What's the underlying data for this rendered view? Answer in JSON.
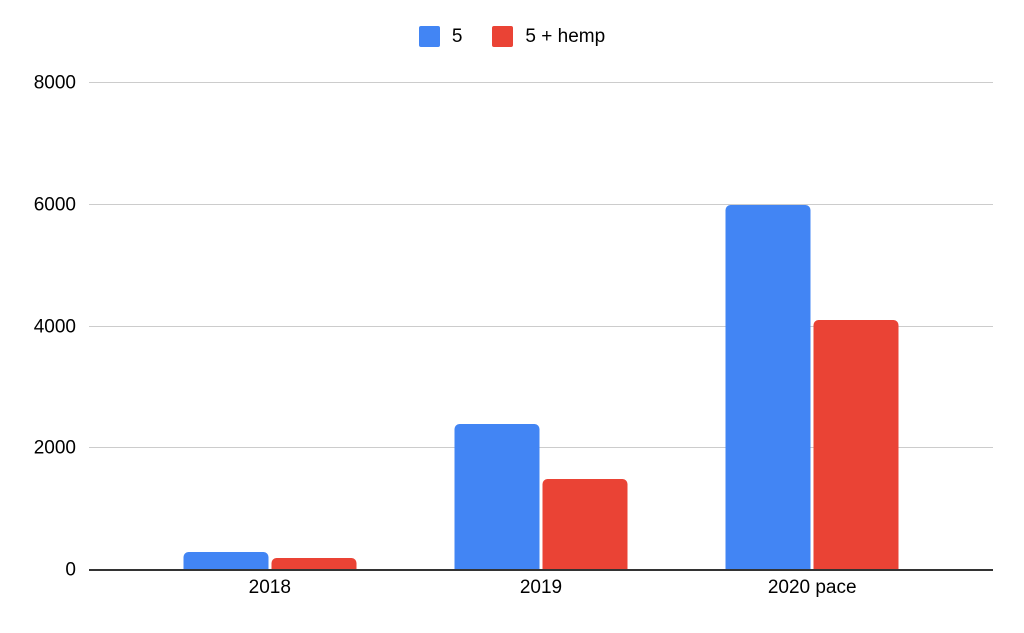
{
  "chart_data": {
    "type": "bar",
    "title": "",
    "xlabel": "",
    "ylabel": "",
    "categories": [
      "2018",
      "2019",
      "2020 pace"
    ],
    "series": [
      {
        "name": "5",
        "color": "#4285f4",
        "values": [
          300,
          2400,
          6000
        ]
      },
      {
        "name": "5 + hemp",
        "color": "#ea4335",
        "values": [
          200,
          1500,
          4100
        ]
      }
    ],
    "ylim": [
      0,
      8000
    ],
    "yticks": [
      0,
      2000,
      4000,
      6000,
      8000
    ],
    "grid": true,
    "legend_position": "top",
    "colors": {
      "background": "#ffffff",
      "gridline": "#cccccc",
      "axis": "#333333",
      "text": "#000000"
    }
  }
}
